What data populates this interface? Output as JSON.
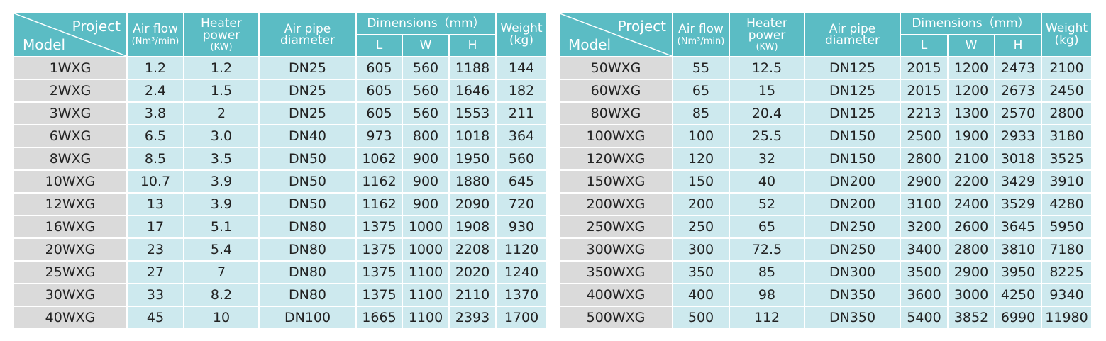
{
  "tables": [
    {
      "header": {
        "project": "Project",
        "model": "Model",
        "air_flow": "Air flow",
        "air_flow_unit": "(Nm³/min)",
        "heater_power": "Heater power",
        "heater_power_unit": "(KW)",
        "air_pipe_diameter": "Air pipe diameter",
        "dimensions": "Dimensions（mm）",
        "dim_l": "L",
        "dim_w": "W",
        "dim_h": "H",
        "weight": "Weight",
        "weight_unit": "(kg)"
      },
      "rows": [
        [
          "1WXG",
          "1.2",
          "1.2",
          "DN25",
          "605",
          "560",
          "1188",
          "144"
        ],
        [
          "2WXG",
          "2.4",
          "1.5",
          "DN25",
          "605",
          "560",
          "1646",
          "182"
        ],
        [
          "3WXG",
          "3.8",
          "2",
          "DN25",
          "605",
          "560",
          "1553",
          "211"
        ],
        [
          "6WXG",
          "6.5",
          "3.0",
          "DN40",
          "973",
          "800",
          "1018",
          "364"
        ],
        [
          "8WXG",
          "8.5",
          "3.5",
          "DN50",
          "1062",
          "900",
          "1950",
          "560"
        ],
        [
          "10WXG",
          "10.7",
          "3.9",
          "DN50",
          "1162",
          "900",
          "1880",
          "645"
        ],
        [
          "12WXG",
          "13",
          "3.9",
          "DN50",
          "1162",
          "900",
          "2090",
          "720"
        ],
        [
          "16WXG",
          "17",
          "5.1",
          "DN80",
          "1375",
          "1000",
          "1908",
          "930"
        ],
        [
          "20WXG",
          "23",
          "5.4",
          "DN80",
          "1375",
          "1000",
          "2208",
          "1120"
        ],
        [
          "25WXG",
          "27",
          "7",
          "DN80",
          "1375",
          "1100",
          "2020",
          "1240"
        ],
        [
          "30WXG",
          "33",
          "8.2",
          "DN80",
          "1375",
          "1100",
          "2110",
          "1370"
        ],
        [
          "40WXG",
          "45",
          "10",
          "DN100",
          "1665",
          "1100",
          "2393",
          "1700"
        ]
      ]
    },
    {
      "header": {
        "project": "Project",
        "model": "Model",
        "air_flow": "Air flow",
        "air_flow_unit": "(Nm³/min)",
        "heater_power": "Heater power",
        "heater_power_unit": "(KW)",
        "air_pipe_diameter": "Air pipe diameter",
        "dimensions": "Dimensions（mm）",
        "dim_l": "L",
        "dim_w": "W",
        "dim_h": "H",
        "weight": "Weight",
        "weight_unit": "(kg)"
      },
      "rows": [
        [
          "50WXG",
          "55",
          "12.5",
          "DN125",
          "2015",
          "1200",
          "2473",
          "2100"
        ],
        [
          "60WXG",
          "65",
          "15",
          "DN125",
          "2015",
          "1200",
          "2673",
          "2450"
        ],
        [
          "80WXG",
          "85",
          "20.4",
          "DN125",
          "2213",
          "1300",
          "2570",
          "2800"
        ],
        [
          "100WXG",
          "100",
          "25.5",
          "DN150",
          "2500",
          "1900",
          "2933",
          "3180"
        ],
        [
          "120WXG",
          "120",
          "32",
          "DN150",
          "2800",
          "2100",
          "3018",
          "3525"
        ],
        [
          "150WXG",
          "150",
          "40",
          "DN200",
          "2900",
          "2200",
          "3429",
          "3910"
        ],
        [
          "200WXG",
          "200",
          "52",
          "DN200",
          "3100",
          "2400",
          "3529",
          "4280"
        ],
        [
          "250WXG",
          "250",
          "65",
          "DN250",
          "3200",
          "2600",
          "3645",
          "5950"
        ],
        [
          "300WXG",
          "300",
          "72.5",
          "DN250",
          "3400",
          "2800",
          "3810",
          "7180"
        ],
        [
          "350WXG",
          "350",
          "85",
          "DN300",
          "3500",
          "2900",
          "3950",
          "8225"
        ],
        [
          "400WXG",
          "400",
          "98",
          "DN350",
          "3600",
          "3000",
          "4250",
          "9340"
        ],
        [
          "500WXG",
          "500",
          "112",
          "DN350",
          "5400",
          "3852",
          "6990",
          "11980"
        ]
      ]
    }
  ]
}
